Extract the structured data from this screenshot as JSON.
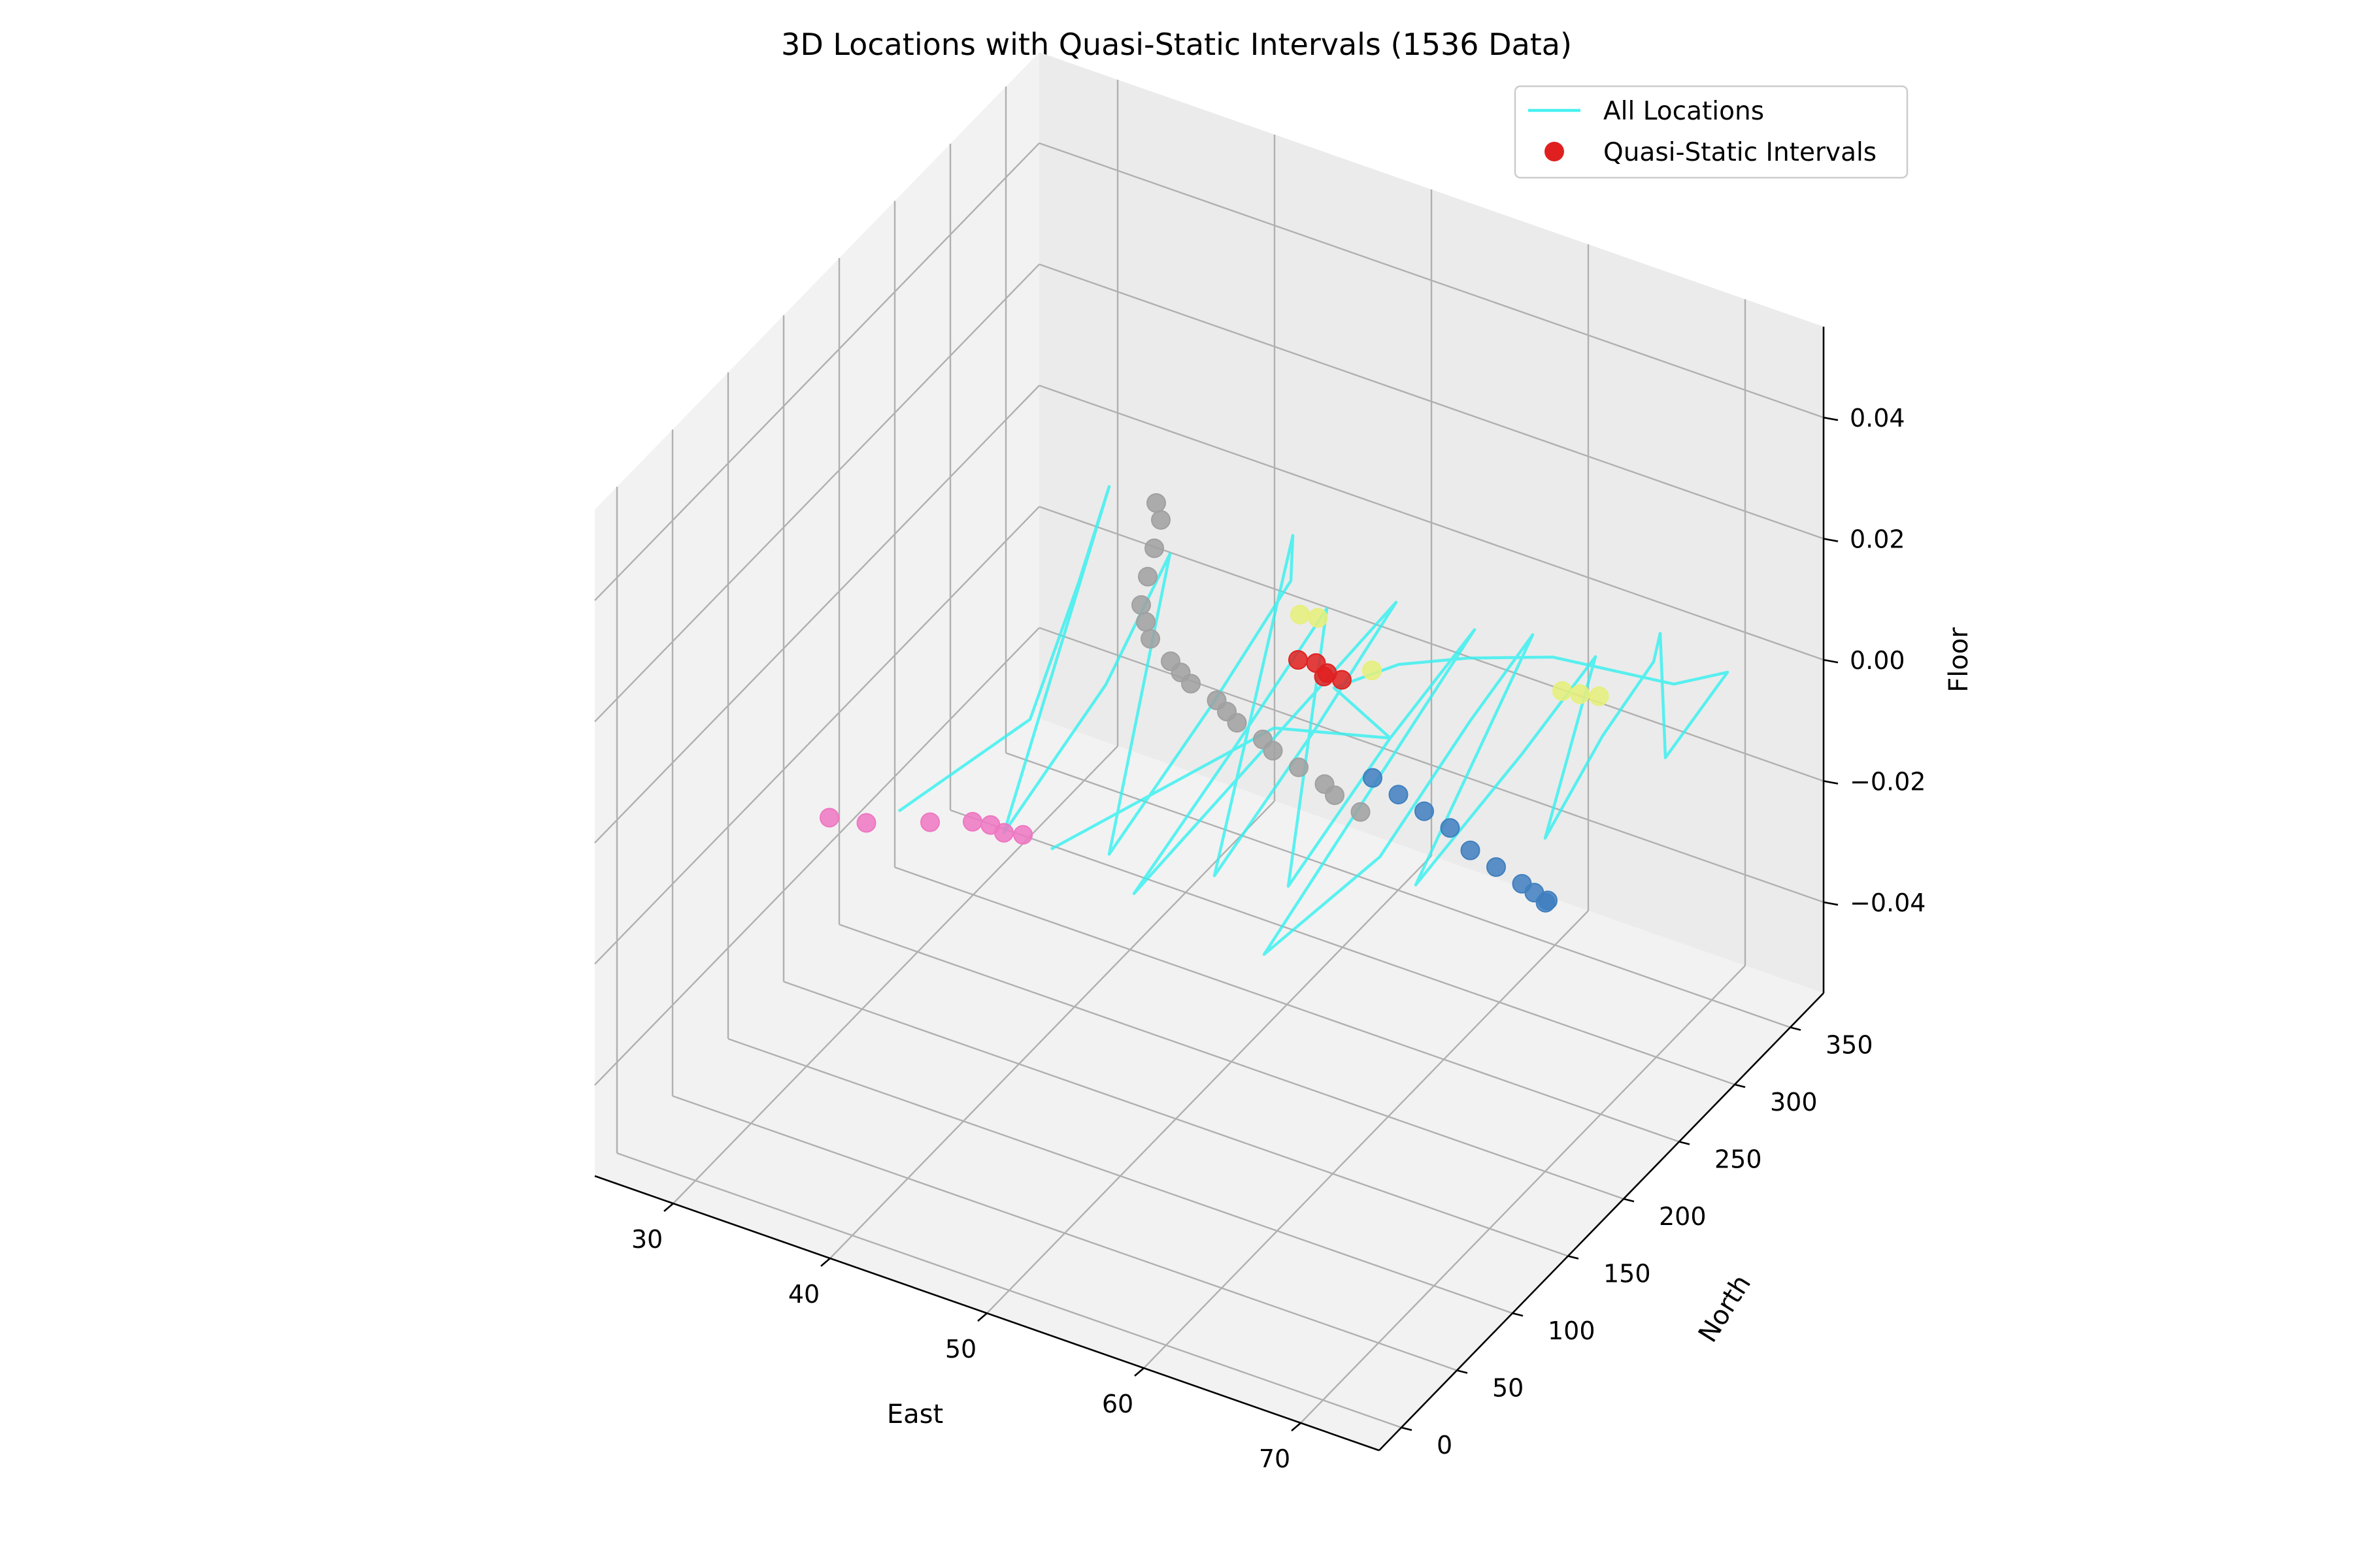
{
  "chart_data": {
    "type": "scatter",
    "projection": "3d",
    "title": "3D Locations with Quasi-Static Intervals (1536 Data)",
    "xlabel": "East",
    "ylabel": "North",
    "zlabel": "Floor",
    "xlim": [
      25,
      75
    ],
    "ylim": [
      -20,
      380
    ],
    "zlim": [
      -0.055,
      0.055
    ],
    "x_ticks": [
      30,
      40,
      50,
      60,
      70
    ],
    "y_ticks": [
      0,
      50,
      100,
      150,
      200,
      250,
      300,
      350
    ],
    "z_ticks": [
      0.04,
      0.02,
      0.0,
      -0.02,
      -0.04
    ],
    "z_tick_labels": [
      "0.04",
      "0.02",
      "0.00",
      "−0.02",
      "−0.04"
    ],
    "grid": true,
    "legend": {
      "position": "top-right",
      "entries": [
        {
          "label": "All Locations",
          "kind": "line",
          "color": "#33f0f0"
        },
        {
          "label": "Quasi-Static Intervals",
          "kind": "marker",
          "color": "#e02020"
        }
      ]
    },
    "series": [
      {
        "name": "All Locations",
        "kind": "line",
        "color": "#33f0f0",
        "points": [
          [
            38,
            70,
            0
          ],
          [
            40,
            160,
            0
          ],
          [
            36,
            260,
            0
          ],
          [
            33,
            330,
            0
          ],
          [
            44,
            80,
            0
          ],
          [
            42,
            200,
            0
          ],
          [
            39,
            300,
            0
          ],
          [
            50,
            90,
            0
          ],
          [
            48,
            210,
            0
          ],
          [
            46,
            310,
            0
          ],
          [
            44,
            340,
            0
          ],
          [
            56,
            100,
            0
          ],
          [
            54,
            220,
            0
          ],
          [
            52,
            320,
            0
          ],
          [
            53,
            70,
            0
          ],
          [
            51,
            190,
            0
          ],
          [
            49,
            300,
            0
          ],
          [
            60,
            110,
            0
          ],
          [
            58,
            230,
            0
          ],
          [
            57,
            320,
            0
          ],
          [
            62,
            60,
            0
          ],
          [
            63,
            150,
            0
          ],
          [
            61,
            260,
            0
          ],
          [
            60,
            330,
            0
          ],
          [
            66,
            140,
            0
          ],
          [
            65,
            250,
            0
          ],
          [
            64,
            330,
            0
          ],
          [
            70,
            200,
            0
          ],
          [
            68,
            280,
            0
          ],
          [
            67,
            340,
            0
          ],
          [
            66,
            360,
            0
          ],
          [
            72,
            280,
            0
          ],
          [
            71,
            350,
            0
          ],
          [
            69,
            330,
            0
          ],
          [
            62,
            320,
            0
          ],
          [
            58,
            300,
            0
          ],
          [
            55,
            280,
            0
          ],
          [
            53,
            250,
            0
          ],
          [
            58,
            230,
            0
          ],
          [
            52,
            210,
            0
          ],
          [
            47,
            80,
            0
          ]
        ]
      },
      {
        "name": "Quasi-Static Intervals (pink)",
        "kind": "scatter",
        "color": "#ee77c2",
        "points": [
          [
            35,
            50,
            0
          ],
          [
            37,
            55,
            0
          ],
          [
            40,
            70,
            0
          ],
          [
            42,
            80,
            0
          ],
          [
            43,
            82,
            0
          ],
          [
            44,
            80,
            0
          ],
          [
            45,
            83,
            0
          ]
        ]
      },
      {
        "name": "Quasi-Static Intervals (gray)",
        "kind": "scatter",
        "color": "#a0a0a0",
        "points": [
          [
            36,
            330,
            0
          ],
          [
            37,
            320,
            0
          ],
          [
            38,
            300,
            0
          ],
          [
            39,
            280,
            0
          ],
          [
            40,
            260,
            0
          ],
          [
            41,
            250,
            0
          ],
          [
            42,
            240,
            0
          ],
          [
            44,
            230,
            0
          ],
          [
            45,
            225,
            0
          ],
          [
            46,
            220,
            0
          ],
          [
            48,
            215,
            0
          ],
          [
            49,
            210,
            0
          ],
          [
            50,
            205,
            0
          ],
          [
            52,
            200,
            0
          ],
          [
            53,
            195,
            0
          ],
          [
            55,
            190,
            0
          ],
          [
            57,
            185,
            0
          ],
          [
            58,
            180,
            0
          ],
          [
            60,
            175,
            0
          ]
        ]
      },
      {
        "name": "Quasi-Static Intervals (red)",
        "kind": "scatter",
        "color": "#e02020",
        "points": [
          [
            50,
            260,
            0
          ],
          [
            51,
            262,
            0
          ],
          [
            52,
            258,
            0
          ],
          [
            52,
            255,
            0
          ],
          [
            53,
            257,
            0
          ]
        ]
      },
      {
        "name": "Quasi-Static Intervals (yellow)",
        "kind": "scatter",
        "color": "#e6f07a",
        "points": [
          [
            48,
            290,
            0
          ],
          [
            49,
            292,
            0
          ],
          [
            54,
            270,
            0
          ],
          [
            64,
            300,
            0
          ],
          [
            65,
            302,
            0
          ],
          [
            66,
            305,
            0
          ]
        ]
      },
      {
        "name": "Quasi-Static Intervals (blue)",
        "kind": "scatter",
        "color": "#3f7fbf",
        "points": [
          [
            59,
            200,
            0
          ],
          [
            61,
            195,
            0
          ],
          [
            63,
            190,
            0
          ],
          [
            65,
            185,
            0
          ],
          [
            67,
            175,
            0
          ],
          [
            69,
            170,
            0
          ],
          [
            71,
            165,
            0
          ],
          [
            72,
            162,
            0
          ],
          [
            73,
            158,
            0
          ],
          [
            73,
            160,
            0
          ]
        ]
      }
    ]
  }
}
